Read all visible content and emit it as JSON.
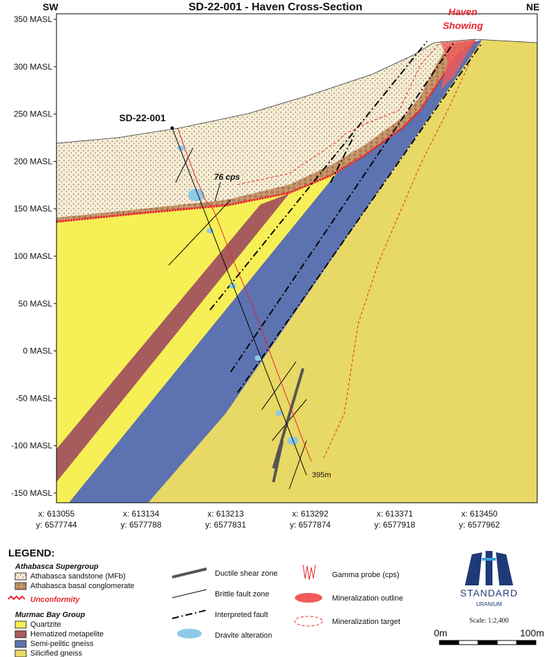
{
  "header": {
    "title": "SD-22-001 - Haven Cross-Section",
    "left_direction": "SW",
    "right_direction": "NE"
  },
  "elevation_labels": [
    "350 MASL",
    "300 MASL",
    "250 MASL",
    "200 MASL",
    "150 MASL",
    "100 MASL",
    "50 MASL",
    "0 MASL",
    "-50 MASL",
    "-100 MASL",
    "-150 MASL"
  ],
  "coordinates": [
    {
      "x": "x: 613055",
      "y": "y: 6577744"
    },
    {
      "x": "x: 613134",
      "y": "y: 6577788"
    },
    {
      "x": "x: 613213",
      "y": "y: 6577831"
    },
    {
      "x": "x: 613292",
      "y": "y: 6577874"
    },
    {
      "x": "x: 613371",
      "y": "y: 6577918"
    },
    {
      "x": "x: 613450",
      "y": "y: 6577962"
    }
  ],
  "annotations": {
    "drillhole": "SD-22-001",
    "gamma_peak": "76 cps",
    "depth": "395m",
    "showing": [
      "Haven",
      "Showing"
    ]
  },
  "legend": {
    "title": "LEGEND:",
    "athabasca": {
      "title": "Athabasca Supergroup",
      "items": [
        "Athabasca sandstone (MFb)",
        "Athabasca basal conglomerate"
      ]
    },
    "unconformity": "Unconformity",
    "murmac": {
      "title": "Murmac Bay Group",
      "items": [
        "Quartzite",
        "Hematized metapelite",
        "Semi-pelitic gneiss",
        "Silicified gneiss"
      ]
    },
    "structures": [
      "Ductile shear zone",
      "Brittle fault zone",
      "Interpreted fault",
      "Dravite alteration"
    ],
    "probes": [
      "Gamma probe (cps)",
      "Mineralization outline",
      "Mineralization target"
    ]
  },
  "logo": {
    "name": "STANDARD",
    "subtitle": "URANIUM"
  },
  "scale": {
    "label": "Scale: 1:2,400",
    "start": "0m",
    "end": "100m"
  }
}
